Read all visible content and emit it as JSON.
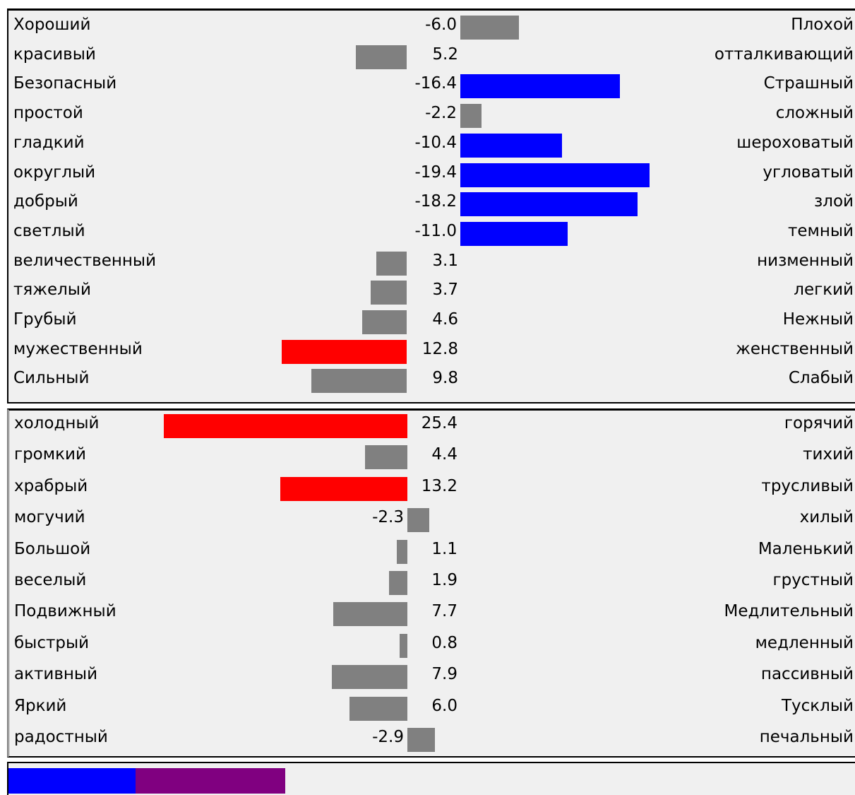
{
  "chart_data": [
    {
      "type": "bar",
      "orientation": "horizontal-diverging",
      "rows": [
        {
          "left": "Хороший",
          "value": "-6.0",
          "right": "Плохой",
          "color": "#808080"
        },
        {
          "left": "красивый",
          "value": "5.2",
          "right": "отталкивающий",
          "color": "#808080"
        },
        {
          "left": "Безопасный",
          "value": "-16.4",
          "right": "Страшный",
          "color": "#0000ff"
        },
        {
          "left": "простой",
          "value": "-2.2",
          "right": "сложный",
          "color": "#808080"
        },
        {
          "left": "гладкий",
          "value": "-10.4",
          "right": "шероховатый",
          "color": "#0000ff"
        },
        {
          "left": "округлый",
          "value": "-19.4",
          "right": "угловатый",
          "color": "#0000ff"
        },
        {
          "left": "добрый",
          "value": "-18.2",
          "right": "злой",
          "color": "#0000ff"
        },
        {
          "left": "светлый",
          "value": "-11.0",
          "right": "темный",
          "color": "#0000ff"
        },
        {
          "left": "величественный",
          "value": "3.1",
          "right": "низменный",
          "color": "#808080"
        },
        {
          "left": "тяжелый",
          "value": "3.7",
          "right": "легкий",
          "color": "#808080"
        },
        {
          "left": "Грубый",
          "value": "4.6",
          "right": "Нежный",
          "color": "#808080"
        },
        {
          "left": "мужественный",
          "value": "12.8",
          "right": "женственный",
          "color": "#ff0000"
        },
        {
          "left": "Сильный",
          "value": "9.8",
          "right": "Слабый",
          "color": "#808080"
        }
      ]
    },
    {
      "type": "bar",
      "orientation": "horizontal-diverging",
      "rows": [
        {
          "left": "холодный",
          "value": "25.4",
          "right": "горячий",
          "color": "#ff0000"
        },
        {
          "left": "громкий",
          "value": "4.4",
          "right": "тихий",
          "color": "#808080"
        },
        {
          "left": "храбрый",
          "value": "13.2",
          "right": "трусливый",
          "color": "#ff0000"
        },
        {
          "left": "могучий",
          "value": "-2.3",
          "right": "хилый",
          "color": "#808080"
        },
        {
          "left": "Большой",
          "value": "1.1",
          "right": "Маленький",
          "color": "#808080"
        },
        {
          "left": "веселый",
          "value": "1.9",
          "right": "грустный",
          "color": "#808080"
        },
        {
          "left": "Подвижный",
          "value": "7.7",
          "right": "Медлительный",
          "color": "#808080"
        },
        {
          "left": "быстрый",
          "value": "0.8",
          "right": "медленный",
          "color": "#808080"
        },
        {
          "left": "активный",
          "value": "7.9",
          "right": "пассивный",
          "color": "#808080"
        },
        {
          "left": "Яркий",
          "value": "6.0",
          "right": "Тусклый",
          "color": "#808080"
        },
        {
          "left": "радостный",
          "value": "-2.9",
          "right": "печальный",
          "color": "#808080"
        }
      ]
    }
  ],
  "legend_strip": [
    {
      "color": "#0000ff",
      "fraction": 0.15
    },
    {
      "color": "#800080",
      "fraction": 0.177
    }
  ]
}
